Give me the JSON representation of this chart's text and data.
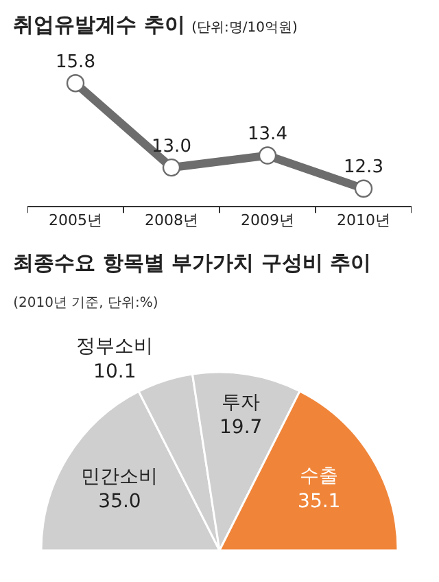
{
  "chart_data": [
    {
      "type": "line",
      "title": "취업유발계수 추이",
      "subtitle": "(단위:명/10억원)",
      "categories": [
        "2005년",
        "2008년",
        "2009년",
        "2010년"
      ],
      "series": [
        {
          "color": "#6d6d6d",
          "values": [
            15.8,
            13.0,
            13.4,
            12.3
          ],
          "value_labels": [
            "15.8",
            "13.0",
            "13.4",
            "12.3"
          ]
        }
      ],
      "marker": "circle",
      "line_style": "solid",
      "grid": false,
      "tick_labels": "x"
    },
    {
      "type": "pie",
      "title": "최종수요 항목별 부가가치 구성비 추이",
      "subtitle": "(2010년 기준, 단위:%)",
      "categories": [
        "민간소비",
        "정부소비",
        "투자",
        "수출"
      ],
      "values": [
        35.0,
        10.1,
        19.7,
        35.1
      ],
      "value_labels": [
        "35.0",
        "10.1",
        "19.7",
        "35.1"
      ],
      "colors": [
        "#cfcfcf",
        "#cfcfcf",
        "#cfcfcf",
        "#f0853a"
      ]
    }
  ]
}
